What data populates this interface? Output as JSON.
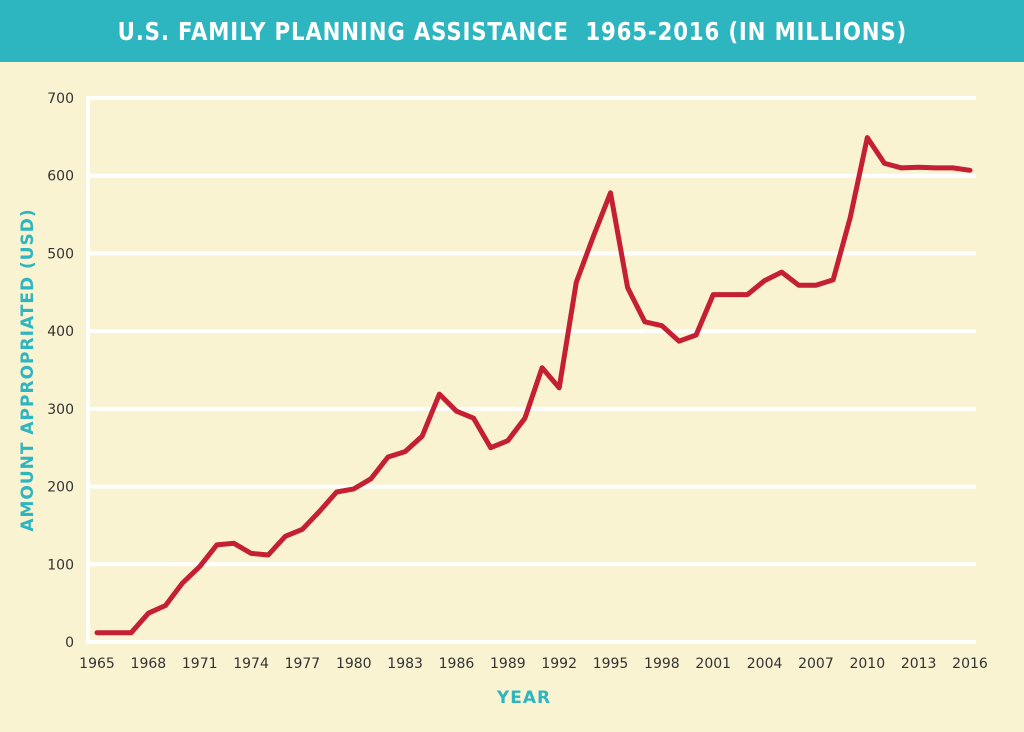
{
  "chart_data": {
    "type": "line",
    "title": "U.S. FAMILY PLANNING ASSISTANCE  1965-2016 (IN MILLIONS)",
    "xlabel": "YEAR",
    "ylabel": "AMOUNT APPROPRIATED (USD)",
    "ylim": [
      0,
      700
    ],
    "xlim": [
      1965,
      2016
    ],
    "yticks": [
      0,
      100,
      200,
      300,
      400,
      500,
      600,
      700
    ],
    "xticks": [
      1965,
      1968,
      1971,
      1974,
      1977,
      1980,
      1983,
      1986,
      1989,
      1992,
      1995,
      1998,
      2001,
      2004,
      2007,
      2010,
      2013,
      2016
    ],
    "grid": true,
    "line_color": "#c41f32",
    "x": [
      1965,
      1966,
      1967,
      1968,
      1969,
      1970,
      1971,
      1972,
      1973,
      1974,
      1975,
      1976,
      1977,
      1978,
      1979,
      1980,
      1981,
      1982,
      1983,
      1984,
      1985,
      1986,
      1987,
      1988,
      1989,
      1990,
      1991,
      1992,
      1993,
      1994,
      1995,
      1996,
      1997,
      1998,
      1999,
      2000,
      2001,
      2002,
      2003,
      2004,
      2005,
      2006,
      2007,
      2008,
      2009,
      2010,
      2011,
      2012,
      2013,
      2014,
      2015,
      2016
    ],
    "y": [
      12,
      12,
      12,
      37,
      47,
      76,
      97,
      125,
      127,
      114,
      112,
      136,
      145,
      168,
      193,
      197,
      210,
      238,
      245,
      265,
      319,
      297,
      288,
      250,
      259,
      288,
      353,
      327,
      463,
      522,
      578,
      456,
      412,
      407,
      387,
      395,
      447,
      447,
      447,
      465,
      476,
      459,
      459,
      466,
      546,
      649,
      616,
      610,
      611,
      610,
      610,
      607
    ]
  }
}
